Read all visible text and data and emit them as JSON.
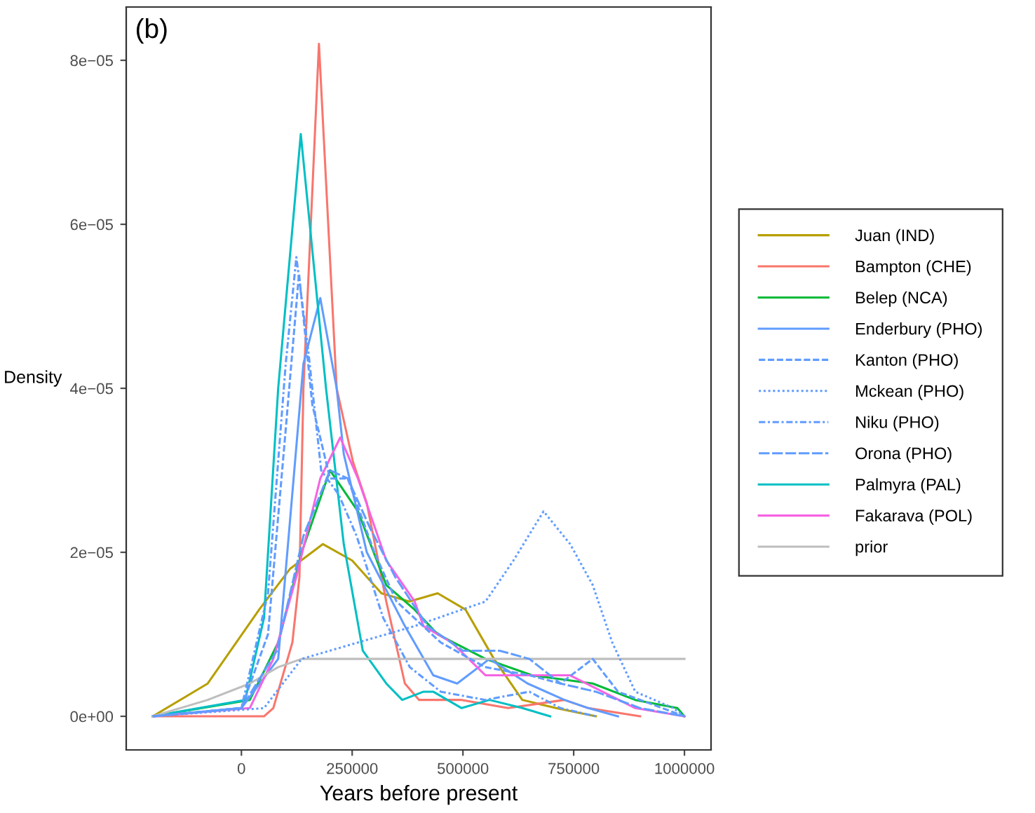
{
  "chart_data": {
    "type": "line",
    "title": "(b)",
    "xlabel": "Years before present",
    "ylabel": "Density",
    "xlim": [
      -260000,
      1060000
    ],
    "xticks": [
      0,
      250000,
      500000,
      750000,
      1000000
    ],
    "ylim": [
      -4.1e-06,
      8.65e-05
    ],
    "yticks": [
      {
        "value": 0,
        "label": "0e+00"
      },
      {
        "value": 2e-05,
        "label": "2e−05"
      },
      {
        "value": 4e-05,
        "label": "4e−05"
      },
      {
        "value": 6e-05,
        "label": "6e−05"
      },
      {
        "value": 8e-05,
        "label": "8e−05"
      }
    ],
    "grid": false,
    "legend": "right",
    "series": [
      {
        "name": "Juan (IND)",
        "color": "#b79f00",
        "line_style": "solid",
        "x": [
          -200000,
          -76000,
          40000,
          110000,
          184000,
          250000,
          316000,
          379000,
          443000,
          506000,
          570000,
          634000,
          710000,
          800000
        ],
        "values": [
          0,
          4e-06,
          1.3e-05,
          1.8e-05,
          2.1e-05,
          1.9e-05,
          1.5e-05,
          1.4e-05,
          1.5e-05,
          1.3e-05,
          7e-06,
          2e-06,
          1e-06,
          0
        ]
      },
      {
        "name": "Bampton (CHE)",
        "color": "#f8766d",
        "line_style": "solid",
        "x": [
          -200000,
          51000,
          72000,
          115000,
          131000,
          140000,
          175000,
          215000,
          252000,
          283000,
          327000,
          369000,
          401000,
          497000,
          602000,
          729000,
          783000,
          900000
        ],
        "values": [
          0,
          0,
          1e-06,
          9e-06,
          1.7e-05,
          4e-05,
          8.2e-05,
          4e-05,
          3.1e-05,
          2.6e-05,
          1.4e-05,
          4e-06,
          2e-06,
          2e-06,
          1e-06,
          2e-06,
          1e-06,
          0
        ]
      },
      {
        "name": "Belep (NCA)",
        "color": "#00ba38",
        "line_style": "solid",
        "x": [
          -200000,
          19000,
          83000,
          136000,
          200000,
          263000,
          327000,
          391000,
          443000,
          551000,
          656000,
          793000,
          889000,
          984000,
          1000000
        ],
        "values": [
          0,
          2e-06,
          9e-06,
          2e-05,
          3e-05,
          2.5e-05,
          1.6e-05,
          1.3e-05,
          1e-05,
          7e-06,
          5e-06,
          4e-06,
          2e-06,
          1e-06,
          0
        ]
      },
      {
        "name": "Enderbury (PHO)",
        "color": "#619cff",
        "line_style": "solid",
        "x": [
          -200000,
          0,
          83000,
          140000,
          178000,
          215000,
          231000,
          283000,
          369000,
          433000,
          487000,
          560000,
          646000,
          729000,
          783000,
          850000
        ],
        "values": [
          0,
          1e-06,
          7e-06,
          4.3e-05,
          5.1e-05,
          4e-05,
          3.2e-05,
          2e-05,
          1.1e-05,
          5e-06,
          4e-06,
          7e-06,
          4e-06,
          2e-06,
          1e-06,
          0
        ]
      },
      {
        "name": "Kanton (PHO)",
        "color": "#619cff",
        "line_style": "dashed",
        "x": [
          -200000,
          0,
          60000,
          100000,
          130000,
          160000,
          200000,
          240000,
          300000,
          350000,
          450000,
          550000,
          650000,
          720000,
          793000,
          850000,
          950000,
          1000000
        ],
        "values": [
          0,
          1e-06,
          1e-05,
          3.5e-05,
          5.4e-05,
          3.8e-05,
          2.9e-05,
          2.9e-05,
          2e-05,
          1.4e-05,
          9e-06,
          6e-06,
          5e-06,
          4e-06,
          7e-06,
          3e-06,
          1e-06,
          0
        ]
      },
      {
        "name": "Mckean (PHO)",
        "color": "#619cff",
        "line_style": "dotted",
        "x": [
          -200000,
          51000,
          136000,
          263000,
          391000,
          497000,
          551000,
          614000,
          682000,
          742000,
          793000,
          837000,
          889000,
          975000,
          1000000
        ],
        "values": [
          0,
          1e-06,
          7e-06,
          9e-06,
          1.1e-05,
          1.3e-05,
          1.4e-05,
          1.9e-05,
          2.5e-05,
          2.1e-05,
          1.6e-05,
          9e-06,
          3e-06,
          1e-06,
          0
        ]
      },
      {
        "name": "Niku (PHO)",
        "color": "#619cff",
        "line_style": "dashdot",
        "x": [
          -200000,
          0,
          60000,
          100000,
          124000,
          150000,
          180000,
          220000,
          260000,
          320000,
          380000,
          450000,
          550000,
          650000,
          720000,
          800000
        ],
        "values": [
          0,
          1e-06,
          1.5e-05,
          4.3e-05,
          5.6e-05,
          4.5e-05,
          3e-05,
          2.7e-05,
          2.2e-05,
          1.2e-05,
          6e-06,
          3e-06,
          2e-06,
          3e-06,
          1e-06,
          0
        ]
      },
      {
        "name": "Orona (PHO)",
        "color": "#619cff",
        "line_style": "longdash",
        "x": [
          -200000,
          0,
          80000,
          140000,
          200000,
          240000,
          290000,
          347000,
          420000,
          500000,
          583000,
          650000,
          720000,
          800000,
          900000,
          1000000
        ],
        "values": [
          0,
          1e-06,
          8e-06,
          2.2e-05,
          3e-05,
          2.9e-05,
          2.3e-05,
          1.7e-05,
          1.1e-05,
          8e-06,
          8e-06,
          7e-06,
          4e-06,
          3e-06,
          1e-06,
          0
        ]
      },
      {
        "name": "Palmyra (PAL)",
        "color": "#00bfc4",
        "line_style": "solid",
        "x": [
          -200000,
          8600,
          51000,
          83000,
          134000,
          191000,
          231000,
          274000,
          327000,
          363000,
          411000,
          433000,
          497000,
          560000,
          634000,
          697000
        ],
        "values": [
          0,
          2e-06,
          1.2e-05,
          4e-05,
          7.1e-05,
          4e-05,
          2.1e-05,
          8e-06,
          4e-06,
          2e-06,
          3e-06,
          3e-06,
          1e-06,
          2e-06,
          1e-06,
          0
        ]
      },
      {
        "name": "Fakarava (POL)",
        "color": "#f564e3",
        "line_style": "solid",
        "x": [
          -200000,
          19000,
          72000,
          124000,
          178000,
          223000,
          263000,
          327000,
          391000,
          411000,
          475000,
          551000,
          656000,
          742000,
          815000,
          889000,
          1000000
        ],
        "values": [
          0,
          1e-06,
          7e-06,
          1.7e-05,
          2.9e-05,
          3.4e-05,
          2.9e-05,
          1.9e-05,
          1.4e-05,
          1.1e-05,
          9e-06,
          5e-06,
          5e-06,
          5e-06,
          3e-06,
          1e-06,
          0
        ]
      },
      {
        "name": "prior",
        "color": "#bebebe",
        "line_style": "solid",
        "x": [
          -200000,
          -76000,
          19000,
          83000,
          136000,
          300000,
          600000,
          1000000
        ],
        "values": [
          0,
          2e-06,
          4e-06,
          6e-06,
          7e-06,
          7e-06,
          7e-06,
          7e-06
        ]
      }
    ]
  }
}
